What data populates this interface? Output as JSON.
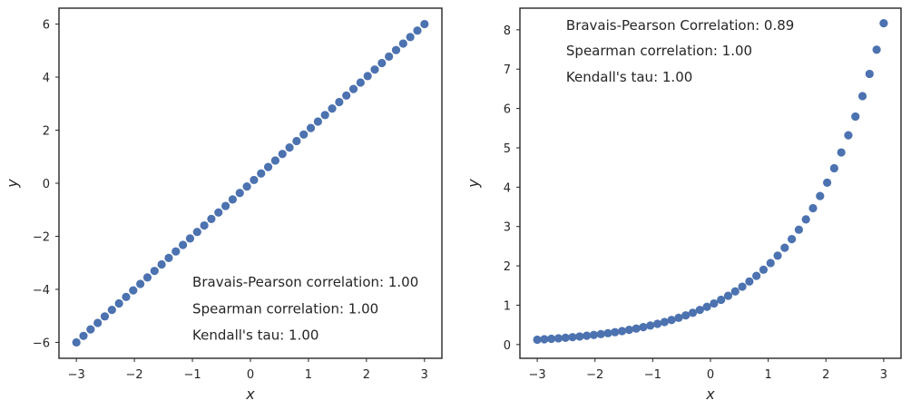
{
  "chart_data": [
    {
      "type": "scatter",
      "id": "left",
      "xlabel": "x",
      "ylabel": "y",
      "xlim": [
        -3.3,
        3.3
      ],
      "ylim": [
        -6.6,
        6.6
      ],
      "xticks": [
        -3,
        -2,
        -1,
        0,
        1,
        2,
        3
      ],
      "yticks": [
        -6,
        -4,
        -2,
        0,
        2,
        4,
        6
      ],
      "xtick_labels": [
        "−3",
        "−2",
        "−1",
        "0",
        "1",
        "2",
        "3"
      ],
      "ytick_labels": [
        "−6",
        "−4",
        "−2",
        "0",
        "2",
        "4",
        "6"
      ],
      "function": "y = 2x",
      "n_points": 50,
      "x_range": [
        -3,
        3
      ],
      "marker_color": "#4c72b0",
      "grid": false,
      "annotations": [
        {
          "text": "Bravais-Pearson correlation: 1.00",
          "x": -1.0,
          "y": -3.9
        },
        {
          "text": "Spearman correlation: 1.00",
          "x": -1.0,
          "y": -4.9
        },
        {
          "text": "Kendall's tau: 1.00",
          "x": -1.0,
          "y": -5.9
        }
      ]
    },
    {
      "type": "scatter",
      "id": "right",
      "xlabel": "x",
      "ylabel": "y",
      "xlim": [
        -3.3,
        3.3
      ],
      "ylim": [
        -0.35,
        8.55
      ],
      "xticks": [
        -3,
        -2,
        -1,
        0,
        1,
        2,
        3
      ],
      "yticks": [
        0,
        1,
        2,
        3,
        4,
        5,
        6,
        7,
        8
      ],
      "xtick_labels": [
        "−3",
        "−2",
        "−1",
        "0",
        "1",
        "2",
        "3"
      ],
      "ytick_labels": [
        "0",
        "1",
        "2",
        "3",
        "4",
        "5",
        "6",
        "7",
        "8"
      ],
      "function": "y = exp(0.7x)",
      "n_points": 50,
      "x_range": [
        -3,
        3
      ],
      "marker_color": "#4c72b0",
      "grid": false,
      "annotations": [
        {
          "text": "Bravais-Pearson Correlation: 0.89",
          "x": -2.5,
          "y": 8.0
        },
        {
          "text": "Spearman correlation: 1.00",
          "x": -2.5,
          "y": 7.35
        },
        {
          "text": "Kendall's tau: 1.00",
          "x": -2.5,
          "y": 6.68
        }
      ]
    }
  ]
}
